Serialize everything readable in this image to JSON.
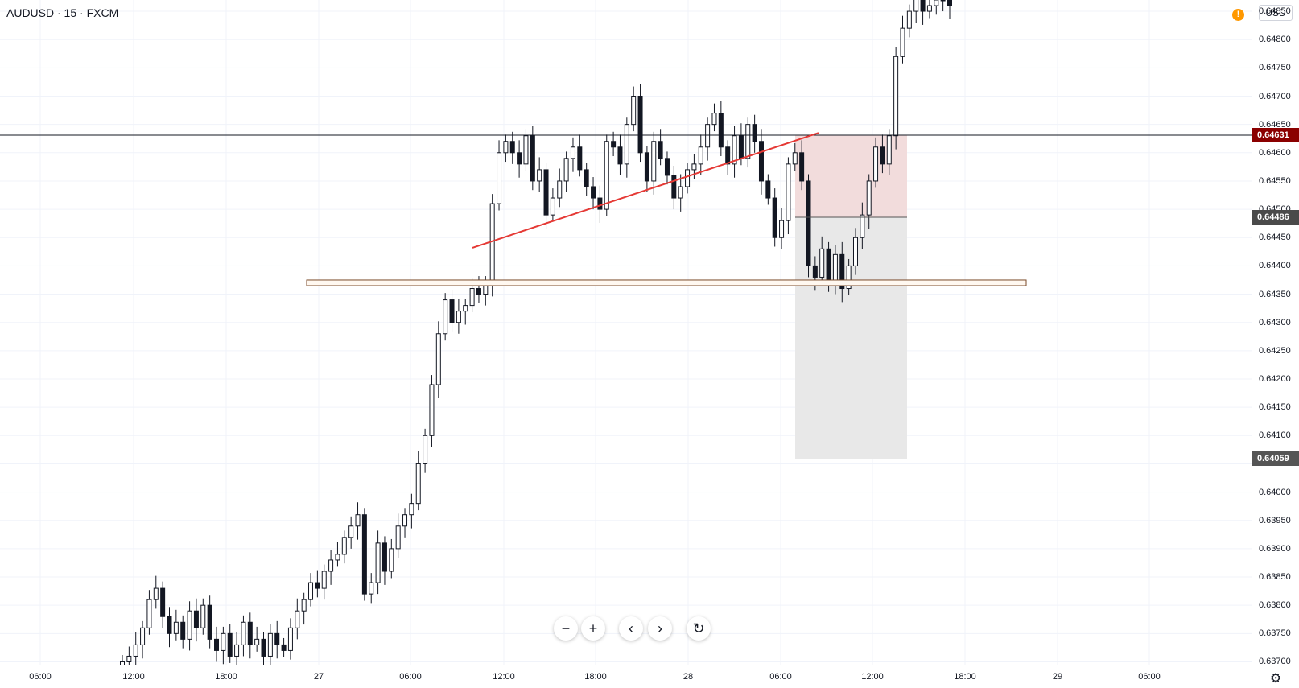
{
  "header": {
    "symbol_title": "AUDUSD · 15 · FXCM",
    "currency": "USD",
    "warning_icon": "alert-circle-icon"
  },
  "colors": {
    "candle_up": "#ffffff",
    "candle_down": "#131722",
    "trendline": "#e53935",
    "entry_line": "#131722",
    "tag_entry_bg": "#8b0000",
    "tag_target_bg": "#4a4a4a",
    "tag_stop_bg": "#555555",
    "stop_zone": "#f2dcdc",
    "target_zone": "#e8e8e8"
  },
  "price_axis": {
    "ticks": [
      "0.64850",
      "0.64800",
      "0.64750",
      "0.64700",
      "0.64650",
      "0.64600",
      "0.64550",
      "0.64500",
      "0.64450",
      "0.64400",
      "0.64350",
      "0.64300",
      "0.64250",
      "0.64200",
      "0.64150",
      "0.64100",
      "0.64050",
      "0.64000",
      "0.63950",
      "0.63900",
      "0.63850",
      "0.63800",
      "0.63750",
      "0.63700"
    ],
    "tags": [
      {
        "label": "0.64631",
        "kind": "entry"
      },
      {
        "label": "0.64486",
        "kind": "target"
      },
      {
        "label": "0.64059",
        "kind": "stop"
      }
    ]
  },
  "time_axis": {
    "ticks": [
      "06:00",
      "12:00",
      "18:00",
      "27",
      "06:00",
      "12:00",
      "18:00",
      "28",
      "06:00",
      "12:00",
      "18:00",
      "29",
      "06:00"
    ],
    "settings_icon": "gear-icon"
  },
  "nav": {
    "zoom_out": "−",
    "zoom_in": "+",
    "scroll_left": "‹",
    "scroll_right": "›",
    "reset": "↻",
    "icons": [
      "zoom-out-icon",
      "zoom-in-icon",
      "chevron-left-icon",
      "chevron-right-icon",
      "reset-icon"
    ]
  },
  "chart_data": {
    "type": "candlestick",
    "symbol": "AUDUSD",
    "interval": "15",
    "source": "FXCM",
    "ylim": [
      0.63695,
      0.6487
    ],
    "x_labels": [
      "06:00",
      "12:00",
      "18:00",
      "27",
      "06:00",
      "12:00",
      "18:00",
      "28",
      "06:00",
      "12:00",
      "18:00",
      "29",
      "06:00"
    ],
    "closes": [
      0.637,
      0.6371,
      0.6373,
      0.6376,
      0.6381,
      0.6383,
      0.6378,
      0.6375,
      0.6377,
      0.6374,
      0.6379,
      0.6376,
      0.638,
      0.6374,
      0.6372,
      0.6375,
      0.6371,
      0.6373,
      0.6377,
      0.6373,
      0.6374,
      0.6371,
      0.6375,
      0.6373,
      0.6372,
      0.6376,
      0.6379,
      0.6381,
      0.6384,
      0.6383,
      0.6386,
      0.6388,
      0.6389,
      0.6392,
      0.6394,
      0.6396,
      0.6382,
      0.6384,
      0.6391,
      0.6386,
      0.639,
      0.6394,
      0.6396,
      0.6398,
      0.6405,
      0.641,
      0.6419,
      0.6428,
      0.6434,
      0.643,
      0.6432,
      0.6433,
      0.6436,
      0.6435,
      0.6437,
      0.6451,
      0.646,
      0.6462,
      0.646,
      0.6458,
      0.6463,
      0.6455,
      0.6457,
      0.6449,
      0.6452,
      0.6455,
      0.6459,
      0.6461,
      0.6457,
      0.6454,
      0.6452,
      0.645,
      0.6462,
      0.6461,
      0.6458,
      0.6465,
      0.647,
      0.646,
      0.6455,
      0.6462,
      0.6459,
      0.6456,
      0.6452,
      0.6454,
      0.6457,
      0.6458,
      0.6461,
      0.6465,
      0.6467,
      0.6461,
      0.6458,
      0.6463,
      0.6459,
      0.6465,
      0.6462,
      0.6455,
      0.6452,
      0.6445,
      0.6448,
      0.6458,
      0.646,
      0.6455,
      0.644,
      0.6438,
      0.6443,
      0.6437,
      0.6442,
      0.6436,
      0.644,
      0.6445,
      0.6449,
      0.6455,
      0.6461,
      0.6458,
      0.6463,
      0.6477,
      0.6482,
      0.6485,
      0.6488,
      0.6485,
      0.6486,
      0.6487,
      0.6487,
      0.6486
    ],
    "horizontal_lines": [
      0.64631,
      0.64486
    ],
    "zone_box": {
      "from": 0.64365,
      "to": 0.64375
    },
    "trendline": {
      "from_price": 0.64432,
      "to_price": 0.64635
    },
    "position": {
      "entry": 0.64631,
      "target": 0.64486,
      "stop": 0.64059
    }
  }
}
